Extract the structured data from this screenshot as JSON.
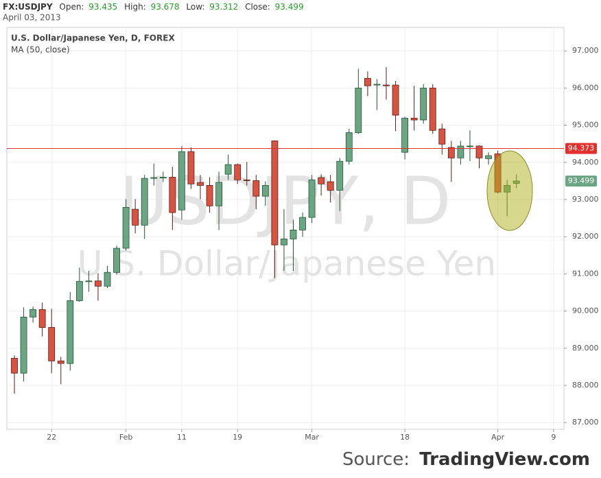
{
  "chart_data": {
    "type": "candlestick",
    "symbol": "FX:USDJPY",
    "info": [
      {
        "label": "Open:",
        "value": 93.435
      },
      {
        "label": "High:",
        "value": 93.678
      },
      {
        "label": "Low:",
        "value": 93.312
      },
      {
        "label": "Close:",
        "value": 93.499
      }
    ],
    "date": "April 03, 2013",
    "title": "U.S. Dollar/Japanese Yen, D, FOREX",
    "indicator": "MA (50, close)",
    "watermark": "USDJPY, D",
    "watermark_subtitle": "U.S. Dollar/Japanese Yen",
    "source_label": "Source:",
    "source": "TradingView.com",
    "categories": [
      null,
      null,
      null,
      null,
      "22",
      null,
      null,
      null,
      null,
      null,
      null,
      null,
      "Feb",
      null,
      null,
      null,
      null,
      null,
      "11",
      null,
      null,
      null,
      null,
      null,
      "19",
      null,
      null,
      null,
      null,
      null,
      null,
      null,
      "Mar",
      null,
      null,
      null,
      null,
      null,
      null,
      null,
      null,
      null,
      "18",
      null,
      null,
      null,
      null,
      null,
      null,
      null,
      null,
      null,
      "Apr",
      null,
      null,
      null,
      null,
      null,
      "9"
    ],
    "open": [
      88.73,
      88.33,
      89.84,
      90.04,
      89.56,
      88.66,
      88.59,
      90.28,
      90.79,
      90.81,
      90.67,
      91.04,
      91.69,
      92.74,
      92.31,
      93.57,
      93.59,
      93.6,
      92.72,
      94.29,
      93.46,
      93.38,
      92.83,
      93.68,
      93.94,
      93.53,
      93.51,
      93.09,
      94.58,
      91.78,
      91.94,
      92.18,
      92.52,
      93.59,
      93.48,
      93.25,
      94.03,
      94.8,
      96.26,
      96.08,
      96.08,
      96.08,
      94.27,
      95.19,
      95.14,
      96.0,
      94.9,
      94.4,
      94.12,
      94.43,
      94.44,
      94.1,
      94.23,
      93.2,
      93.435,
      null,
      null,
      null,
      null
    ],
    "high": [
      88.81,
      90.1,
      90.12,
      90.23,
      90.06,
      88.77,
      90.51,
      91.17,
      91.08,
      91.02,
      91.21,
      91.76,
      93.01,
      93.01,
      93.66,
      93.97,
      93.75,
      93.88,
      94.44,
      94.4,
      93.66,
      93.6,
      93.75,
      94.21,
      93.97,
      94.01,
      93.66,
      93.49,
      94.58,
      92.74,
      92.46,
      92.65,
      93.66,
      93.68,
      93.66,
      94.12,
      94.9,
      96.52,
      96.45,
      96.24,
      96.56,
      96.19,
      95.23,
      96.06,
      96.1,
      96.1,
      95.04,
      94.58,
      94.58,
      94.86,
      94.46,
      94.27,
      94.31,
      93.53,
      93.678,
      null,
      null,
      null,
      null
    ],
    "low": [
      87.78,
      88.11,
      89.69,
      89.32,
      88.33,
      88.03,
      88.4,
      90.25,
      90.52,
      90.28,
      90.62,
      90.98,
      91.63,
      92.09,
      91.94,
      93.38,
      93.47,
      92.18,
      92.46,
      93.29,
      93.01,
      92.65,
      92.18,
      93.53,
      93.42,
      93.38,
      92.74,
      92.83,
      90.89,
      91.08,
      91.08,
      92.0,
      92.37,
      93.11,
      92.92,
      92.69,
      93.94,
      94.77,
      95.78,
      95.41,
      95.69,
      94.84,
      94.08,
      94.86,
      95.04,
      94.77,
      94.21,
      93.48,
      93.94,
      94.03,
      93.84,
      93.94,
      93.16,
      92.55,
      93.312,
      null,
      null,
      null,
      null
    ],
    "close": [
      88.33,
      89.84,
      90.04,
      89.56,
      88.66,
      88.59,
      90.28,
      90.8,
      90.81,
      90.67,
      91.04,
      91.69,
      92.79,
      92.31,
      93.57,
      93.59,
      93.6,
      92.65,
      94.29,
      93.42,
      93.38,
      92.83,
      93.46,
      93.94,
      93.53,
      93.51,
      93.09,
      93.38,
      91.78,
      91.94,
      92.18,
      92.52,
      93.53,
      93.42,
      93.25,
      94.03,
      94.8,
      96.0,
      96.06,
      96.1,
      96.06,
      95.27,
      95.19,
      95.14,
      96.0,
      94.86,
      94.49,
      94.12,
      94.44,
      94.44,
      94.12,
      94.18,
      93.2,
      93.38,
      93.499,
      null,
      null,
      null,
      null
    ],
    "up_color": "#6ba583",
    "down_color": "#d75442",
    "ylim": [
      86.82,
      97.63
    ],
    "yticks": [
      {
        "value": 87,
        "label": "87.000"
      },
      {
        "value": 88,
        "label": "88.000"
      },
      {
        "value": 89,
        "label": "89.000"
      },
      {
        "value": 90,
        "label": "90.000"
      },
      {
        "value": 91,
        "label": "91.000"
      },
      {
        "value": 92,
        "label": "92.000"
      },
      {
        "value": 93,
        "label": "93.000"
      },
      {
        "value": 94,
        "label": "94.000"
      },
      {
        "value": 95,
        "label": "95.000"
      },
      {
        "value": 96,
        "label": "96.000"
      },
      {
        "value": 97,
        "label": "97.000"
      }
    ],
    "grid": true,
    "hline": {
      "value": 94.373,
      "color": "#e0312e"
    },
    "last_price": 93.499,
    "last_price_color": "#6ba583"
  }
}
